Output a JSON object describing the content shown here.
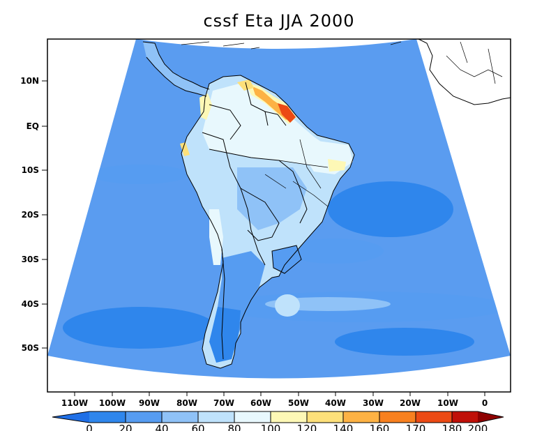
{
  "title": "cssf Eta JJA 2000",
  "map": {
    "projection": "conic",
    "lon_range": [
      "110W",
      "0"
    ],
    "lat_range": [
      "50S",
      "10N"
    ],
    "land_color": "#ffffff",
    "ocean_color": "#5a9cf0",
    "boundary_color": "#000000"
  },
  "axes": {
    "y_ticks": [
      "10N",
      "EQ",
      "10S",
      "20S",
      "30S",
      "40S",
      "50S"
    ],
    "x_ticks": [
      "110W",
      "100W",
      "90W",
      "80W",
      "70W",
      "60W",
      "50W",
      "40W",
      "30W",
      "20W",
      "10W",
      "0"
    ]
  },
  "colorbar": {
    "levels": [
      "0",
      "20",
      "40",
      "60",
      "80",
      "100",
      "120",
      "140",
      "160",
      "170",
      "180",
      "200"
    ],
    "colors": [
      "#1f6fe6",
      "#2f86ec",
      "#569cf1",
      "#8fc2f7",
      "#bfe2fb",
      "#e8f8fd",
      "#fdf8b6",
      "#fde07a",
      "#fdb244",
      "#f8801f",
      "#ec4a14",
      "#c01008",
      "#8e0000"
    ]
  }
}
